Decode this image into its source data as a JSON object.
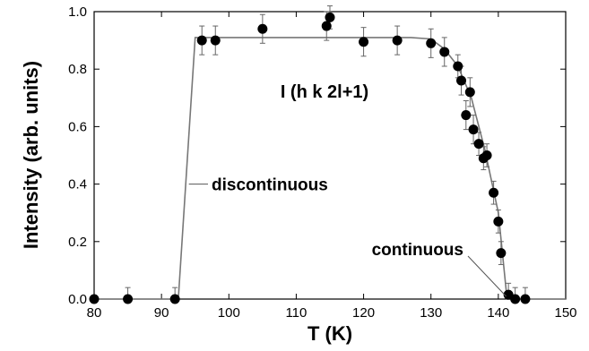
{
  "chart_data": {
    "type": "scatter",
    "title": "",
    "xlabel": "T (K)",
    "ylabel": "Intensity (arb. units)",
    "xlim": [
      80,
      150
    ],
    "ylim": [
      0,
      1.0
    ],
    "xticks": [
      80,
      90,
      100,
      110,
      120,
      130,
      140,
      150
    ],
    "yticks": [
      0.0,
      0.2,
      0.4,
      0.6,
      0.8,
      1.0
    ],
    "ytick_labels": [
      "0.0",
      "0.2",
      "0.4",
      "0.6",
      "0.8",
      "1.0"
    ],
    "grid": false,
    "series_label": "I (h k 2l+1)",
    "points": [
      {
        "x": 80,
        "y": 0.0,
        "err": 0.0
      },
      {
        "x": 85,
        "y": 0.0,
        "err": 0.04
      },
      {
        "x": 92,
        "y": 0.0,
        "err": 0.04
      },
      {
        "x": 96,
        "y": 0.9,
        "err": 0.05
      },
      {
        "x": 98,
        "y": 0.9,
        "err": 0.05
      },
      {
        "x": 105,
        "y": 0.94,
        "err": 0.05
      },
      {
        "x": 114.5,
        "y": 0.95,
        "err": 0.05
      },
      {
        "x": 115,
        "y": 0.98,
        "err": 0.04
      },
      {
        "x": 120,
        "y": 0.895,
        "err": 0.05
      },
      {
        "x": 125,
        "y": 0.9,
        "err": 0.05
      },
      {
        "x": 130,
        "y": 0.89,
        "err": 0.05
      },
      {
        "x": 132,
        "y": 0.86,
        "err": 0.05
      },
      {
        "x": 134,
        "y": 0.81,
        "err": 0.04
      },
      {
        "x": 134.5,
        "y": 0.76,
        "err": 0.05
      },
      {
        "x": 135.2,
        "y": 0.64,
        "err": 0.05
      },
      {
        "x": 135.8,
        "y": 0.72,
        "err": 0.05
      },
      {
        "x": 136.3,
        "y": 0.59,
        "err": 0.05
      },
      {
        "x": 137.1,
        "y": 0.54,
        "err": 0.04
      },
      {
        "x": 137.8,
        "y": 0.49,
        "err": 0.04
      },
      {
        "x": 138.3,
        "y": 0.5,
        "err": 0.04
      },
      {
        "x": 139.3,
        "y": 0.37,
        "err": 0.04
      },
      {
        "x": 140,
        "y": 0.27,
        "err": 0.04
      },
      {
        "x": 140.4,
        "y": 0.16,
        "err": 0.04
      },
      {
        "x": 141.5,
        "y": 0.015,
        "err": 0.04
      },
      {
        "x": 142.5,
        "y": 0.0,
        "err": 0.04
      },
      {
        "x": 144,
        "y": 0.0,
        "err": 0.04
      }
    ],
    "fit_line": [
      {
        "x": 80,
        "y": 0.0
      },
      {
        "x": 92.5,
        "y": 0.0
      },
      {
        "x": 95,
        "y": 0.91
      },
      {
        "x": 127,
        "y": 0.91
      },
      {
        "x": 130,
        "y": 0.905
      },
      {
        "x": 132,
        "y": 0.87
      },
      {
        "x": 134,
        "y": 0.81
      },
      {
        "x": 136,
        "y": 0.7
      },
      {
        "x": 138,
        "y": 0.52
      },
      {
        "x": 140,
        "y": 0.3
      },
      {
        "x": 141.3,
        "y": 0.0
      },
      {
        "x": 150,
        "y": 0.0
      }
    ],
    "annotations": [
      {
        "text": "discontinuous",
        "target_x": 93.8,
        "target_y": 0.4
      },
      {
        "text": "continuous",
        "target_x": 141.3,
        "target_y": 0.0
      }
    ]
  }
}
